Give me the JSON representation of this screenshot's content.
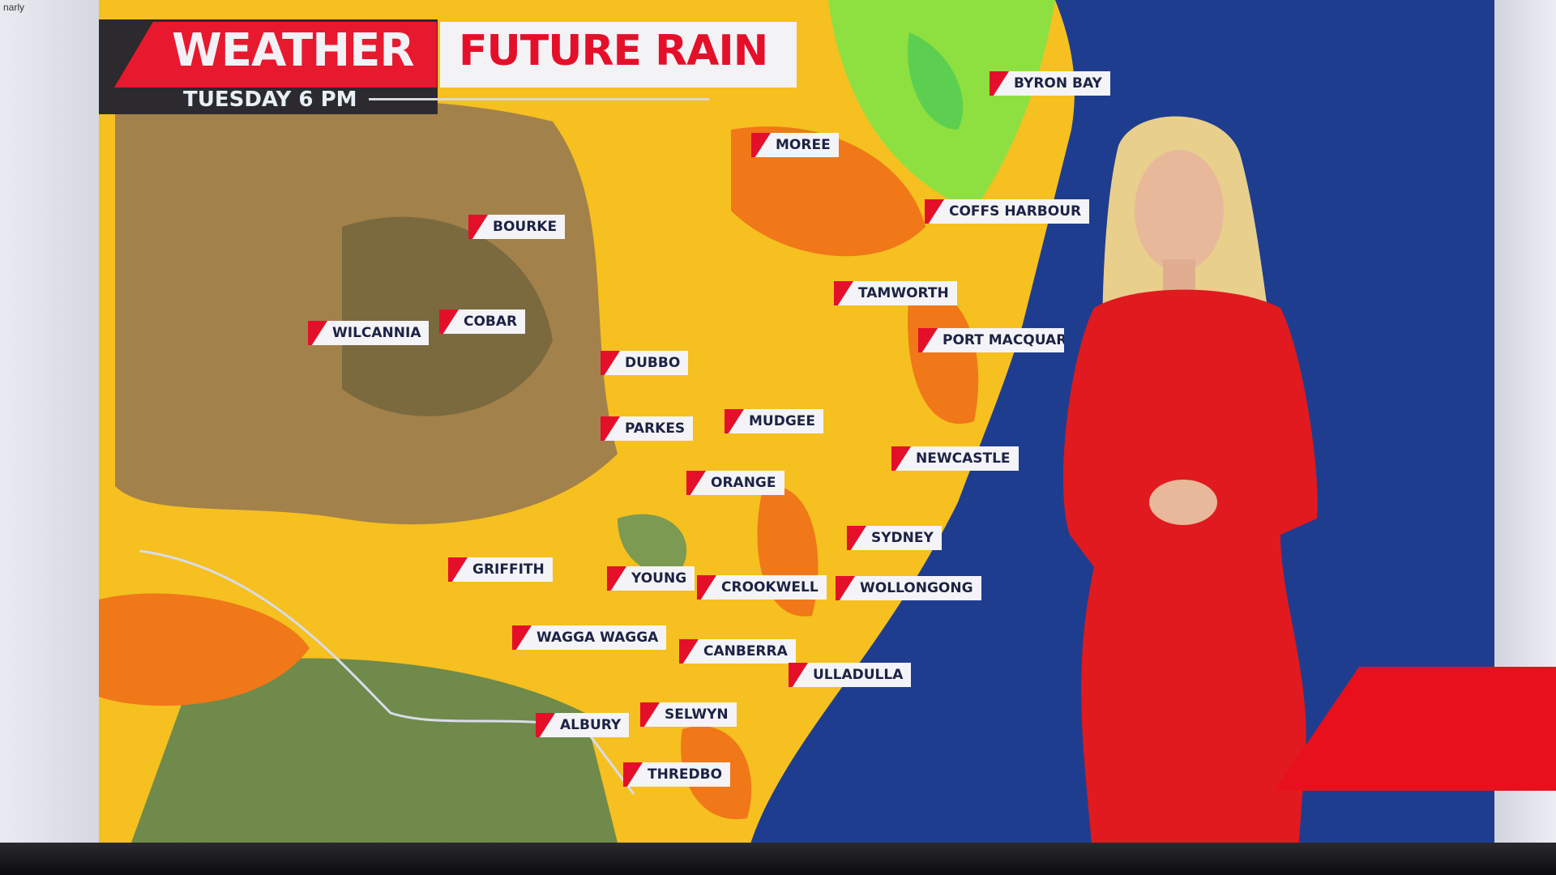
{
  "corner_text": "narly",
  "header": {
    "brand": "WEATHER",
    "title": "FUTURE RAIN",
    "time": "TUESDAY 6 PM"
  },
  "colors": {
    "brand_red": "#e8182e",
    "ocean": "#1f3d8f",
    "rain_yellow": "#f5c020",
    "rain_orange": "#f07818",
    "rain_green": "#8ee040"
  },
  "map_labels": [
    {
      "name": "BYRON BAY"
    },
    {
      "name": "MOREE"
    },
    {
      "name": "COFFS HARBOUR"
    },
    {
      "name": "BOURKE"
    },
    {
      "name": "TAMWORTH"
    },
    {
      "name": "PORT MACQUAR"
    },
    {
      "name": "WILCANNIA"
    },
    {
      "name": "COBAR"
    },
    {
      "name": "DUBBO"
    },
    {
      "name": "MUDGEE"
    },
    {
      "name": "PARKES"
    },
    {
      "name": "NEWCASTLE"
    },
    {
      "name": "ORANGE"
    },
    {
      "name": "SYDNEY"
    },
    {
      "name": "GRIFFITH"
    },
    {
      "name": "YOUNG"
    },
    {
      "name": "CROOKWELL"
    },
    {
      "name": "WOLLONGONG"
    },
    {
      "name": "WAGGA WAGGA"
    },
    {
      "name": "CANBERRA"
    },
    {
      "name": "ULLADULLA"
    },
    {
      "name": "SELWYN"
    },
    {
      "name": "ALBURY"
    },
    {
      "name": "THREDBO"
    }
  ]
}
